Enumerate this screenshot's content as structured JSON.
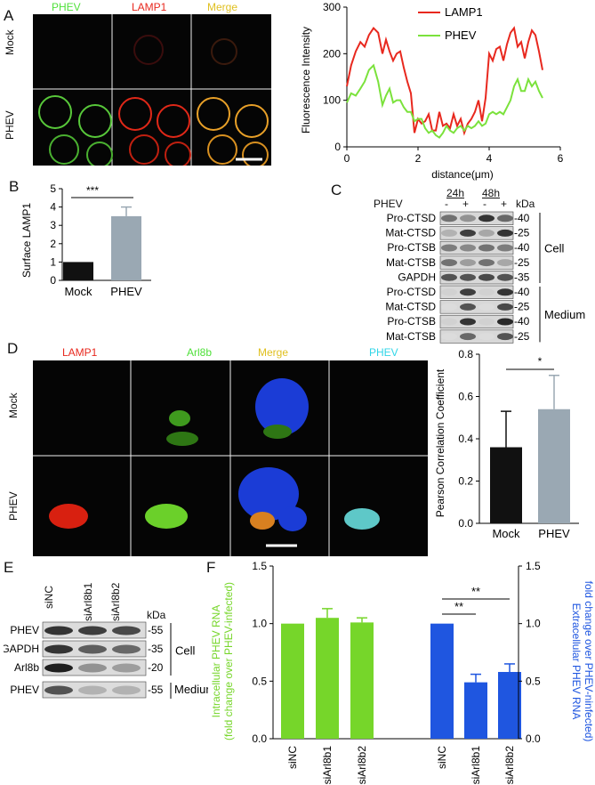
{
  "panelA": {
    "letter": "A",
    "col_titles": [
      "PHEV",
      "LAMP1",
      "Merge"
    ],
    "row_labels": [
      "Mock",
      "PHEV"
    ]
  },
  "panelA_chart": {
    "ylabel": "Fluorescence Intensity",
    "xlabel": "distance(μm)",
    "legend": [
      "LAMP1",
      "PHEV"
    ],
    "xticks": [
      "0",
      "2",
      "4",
      "6"
    ],
    "yticks": [
      "0",
      "100",
      "200",
      "300"
    ]
  },
  "panelB": {
    "letter": "B",
    "ylabel": "Surface LAMP1",
    "categories": [
      "Mock",
      "PHEV"
    ],
    "significance": "***",
    "yticks": [
      "0",
      "1",
      "2",
      "3",
      "4",
      "5"
    ]
  },
  "panelC": {
    "letter": "C",
    "top": {
      "prefix": "PHEV",
      "t1": "24h",
      "t2": "48h",
      "signs": [
        "-",
        "+",
        "-",
        "+"
      ],
      "unit": "kDa"
    },
    "rows": [
      {
        "label": "Pro-CTSD",
        "kda": "-40"
      },
      {
        "label": "Mat-CTSD",
        "kda": "-25"
      },
      {
        "label": "Pro-CTSB",
        "kda": "-40"
      },
      {
        "label": "Mat-CTSB",
        "kda": "-25"
      },
      {
        "label": "GAPDH",
        "kda": "-35"
      },
      {
        "label": "Pro-CTSD",
        "kda": "-40"
      },
      {
        "label": "Mat-CTSD",
        "kda": "-25"
      },
      {
        "label": "Pro-CTSB",
        "kda": "-40"
      },
      {
        "label": "Mat-CTSB",
        "kda": "-25"
      }
    ],
    "groups": [
      "Cell",
      "Medium"
    ]
  },
  "panelD": {
    "letter": "D",
    "col_titles": [
      "LAMP1",
      "Arl8b",
      "Merge",
      "PHEV"
    ],
    "row_labels": [
      "Mock",
      "PHEV"
    ],
    "chart_ylabel": "Pearson Correlation Coefficient",
    "categories": [
      "Mock",
      "PHEV"
    ],
    "significance": "*",
    "yticks": [
      "0.0",
      "0.2",
      "0.4",
      "0.6",
      "0.8"
    ]
  },
  "panelE": {
    "letter": "E",
    "lanes": [
      "siNC",
      "siArl8b1",
      "siArl8b2"
    ],
    "unit": "kDa",
    "rows": [
      {
        "label": "PHEV",
        "kda": "-55"
      },
      {
        "label": "GAPDH",
        "kda": "-35"
      },
      {
        "label": "Arl8b",
        "kda": "-20"
      },
      {
        "label": "PHEV",
        "kda": "-55"
      }
    ],
    "groups": [
      "Cell",
      "Medium"
    ]
  },
  "panelF": {
    "letter": "F",
    "ylabel_left_1": "Intracellular PHEV RNA",
    "ylabel_left_2": "(fold change over PHEV-infected)",
    "ylabel_right_1": "Extracellular PHEV RNA",
    "ylabel_right_2": "fold change over PHEV-ninfected)",
    "categories": [
      "siNC",
      "siArl8b1",
      "siArl8b2",
      "siNC",
      "siArl8b1",
      "siArl8b2"
    ],
    "significance": [
      "**",
      "**"
    ],
    "yticks": [
      "0.0",
      "0.5",
      "1.0",
      "1.5"
    ]
  },
  "chart_data": [
    {
      "type": "line",
      "xlabel": "distance(μm)",
      "ylabel": "Fluorescence Intensity",
      "xlim": [
        0,
        6
      ],
      "ylim": [
        0,
        300
      ],
      "series": [
        {
          "name": "LAMP1",
          "color": "#e8281e",
          "x": [
            0,
            0.12,
            0.25,
            0.38,
            0.5,
            0.62,
            0.75,
            0.88,
            1.0,
            1.1,
            1.2,
            1.3,
            1.4,
            1.5,
            1.6,
            1.7,
            1.8,
            1.9,
            2.0,
            2.1,
            2.2,
            2.3,
            2.4,
            2.5,
            2.6,
            2.7,
            2.8,
            2.9,
            3.0,
            3.1,
            3.2,
            3.3,
            3.4,
            3.5,
            3.6,
            3.7,
            3.8,
            3.9,
            4.0,
            4.1,
            4.2,
            4.3,
            4.4,
            4.5,
            4.6,
            4.7,
            4.8,
            4.9,
            5.0,
            5.1,
            5.2,
            5.3,
            5.4,
            5.5
          ],
          "y": [
            130,
            175,
            205,
            225,
            215,
            240,
            255,
            245,
            200,
            230,
            205,
            185,
            200,
            205,
            170,
            140,
            115,
            30,
            60,
            50,
            55,
            70,
            35,
            35,
            75,
            45,
            50,
            40,
            70,
            45,
            60,
            30,
            50,
            60,
            75,
            100,
            55,
            105,
            200,
            185,
            210,
            215,
            185,
            220,
            245,
            255,
            215,
            225,
            190,
            225,
            250,
            240,
            205,
            165
          ]
        },
        {
          "name": "PHEV",
          "color": "#7be23c",
          "x": [
            0,
            0.12,
            0.25,
            0.38,
            0.5,
            0.62,
            0.75,
            0.88,
            1.0,
            1.1,
            1.2,
            1.3,
            1.4,
            1.5,
            1.6,
            1.7,
            1.8,
            1.9,
            2.0,
            2.1,
            2.2,
            2.3,
            2.4,
            2.5,
            2.6,
            2.7,
            2.8,
            2.9,
            3.0,
            3.1,
            3.2,
            3.3,
            3.4,
            3.5,
            3.6,
            3.7,
            3.8,
            3.9,
            4.0,
            4.1,
            4.2,
            4.3,
            4.4,
            4.5,
            4.6,
            4.7,
            4.8,
            4.9,
            5.0,
            5.1,
            5.2,
            5.3,
            5.4,
            5.5
          ],
          "y": [
            95,
            115,
            110,
            125,
            140,
            165,
            175,
            140,
            90,
            110,
            125,
            95,
            100,
            100,
            85,
            75,
            75,
            55,
            60,
            60,
            40,
            30,
            35,
            25,
            20,
            30,
            45,
            35,
            30,
            40,
            45,
            35,
            45,
            40,
            45,
            55,
            45,
            50,
            70,
            75,
            70,
            75,
            70,
            85,
            100,
            130,
            145,
            120,
            120,
            145,
            130,
            140,
            120,
            105
          ]
        }
      ]
    },
    {
      "type": "bar",
      "ylabel": "Surface LAMP1",
      "categories": [
        "Mock",
        "PHEV"
      ],
      "values": [
        1.0,
        3.5
      ],
      "errors": [
        0,
        0.5
      ],
      "colors": [
        "#111111",
        "#9aa8b3"
      ],
      "ylim": [
        0,
        5
      ]
    },
    {
      "type": "bar",
      "ylabel": "Pearson Correlation Coefficient",
      "categories": [
        "Mock",
        "PHEV"
      ],
      "values": [
        0.36,
        0.54
      ],
      "errors": [
        0.17,
        0.16
      ],
      "colors": [
        "#111111",
        "#9aa8b3"
      ],
      "ylim": [
        0,
        0.8
      ]
    },
    {
      "type": "bar",
      "ylabel": "Intracellular PHEV RNA (fold change over PHEV-infected)",
      "y2label": "Extracellular PHEV RNA fold change over PHEV-ninfected)",
      "categories": [
        "siNC",
        "siArl8b1",
        "siArl8b2",
        "siNC",
        "siArl8b1",
        "siArl8b2"
      ],
      "values": [
        1.0,
        1.05,
        1.01,
        1.0,
        0.49,
        0.58
      ],
      "errors": [
        0,
        0.08,
        0.04,
        0,
        0.07,
        0.07
      ],
      "colors": [
        "#76d62a",
        "#76d62a",
        "#76d62a",
        "#1f56e0",
        "#1f56e0",
        "#1f56e0"
      ],
      "ylim": [
        0,
        1.5
      ]
    }
  ]
}
